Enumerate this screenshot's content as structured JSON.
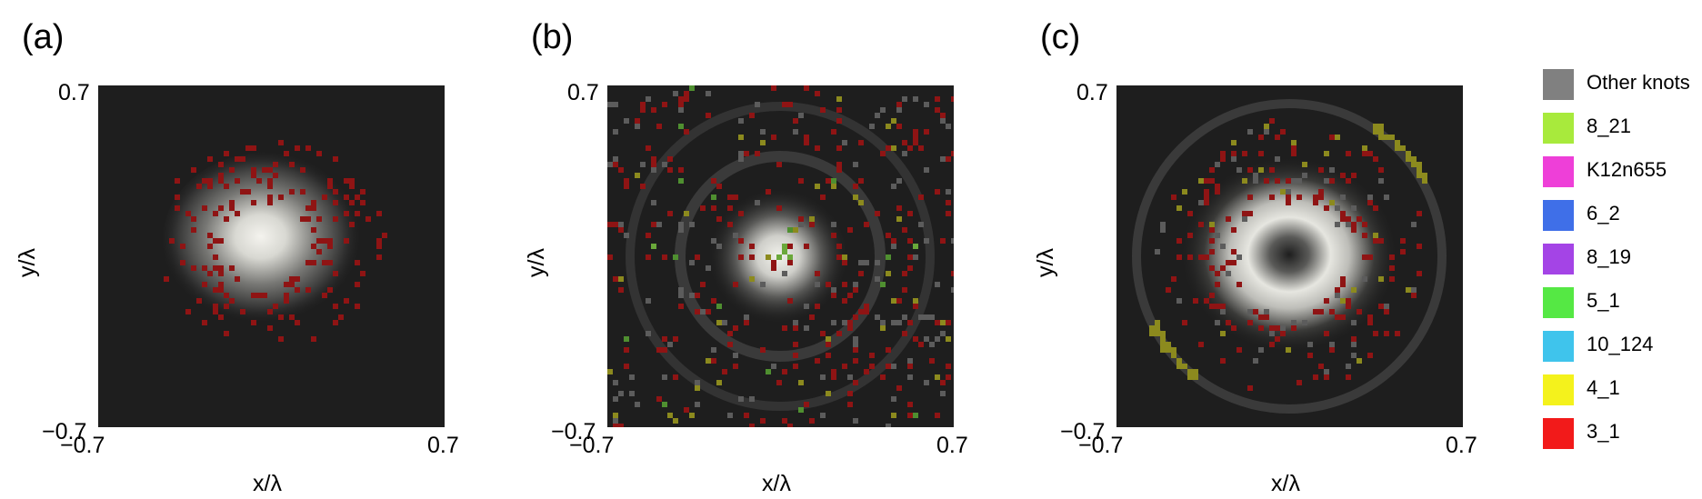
{
  "panels": [
    {
      "label": "(a)",
      "xlabel": "x/λ",
      "ylabel": "y/λ",
      "x_ticks": [
        "−0.7",
        "0.7"
      ],
      "y_ticks": [
        "0.7",
        "−0.7"
      ],
      "intensity_pattern": "gaussian spot",
      "knot_markers": [
        "3_1"
      ]
    },
    {
      "label": "(b)",
      "xlabel": "x/λ",
      "ylabel": "y/λ",
      "x_ticks": [
        "−0.7",
        "0.7"
      ],
      "y_ticks": [
        "0.7",
        "−0.7"
      ],
      "intensity_pattern": "central spot with concentric rings",
      "knot_markers": [
        "3_1",
        "Other knots",
        "4_1",
        "5_1",
        "8_19"
      ]
    },
    {
      "label": "(c)",
      "xlabel": "x/λ",
      "ylabel": "y/λ",
      "x_ticks": [
        "−0.7",
        "0.7"
      ],
      "y_ticks": [
        "0.7",
        "−0.7"
      ],
      "intensity_pattern": "ring with dark center and outer ring",
      "knot_markers": [
        "3_1",
        "Other knots",
        "4_1",
        "8_19"
      ]
    }
  ],
  "legend": [
    {
      "name": "Other knots",
      "color": "#808080"
    },
    {
      "name": "8_21",
      "color": "#a8ea3c"
    },
    {
      "name": "K12n655",
      "color": "#ee3fd8"
    },
    {
      "name": "6_2",
      "color": "#3f6fe8"
    },
    {
      "name": "8_19",
      "color": "#a444e6"
    },
    {
      "name": "5_1",
      "color": "#55e844"
    },
    {
      "name": "10_124",
      "color": "#3fc4ec"
    },
    {
      "name": "4_1",
      "color": "#f4f21c"
    },
    {
      "name": "3_1",
      "color": "#f21a1a"
    }
  ],
  "chart_data": [
    {
      "type": "heatmap",
      "title": "(a)",
      "xlabel": "x/λ",
      "ylabel": "y/λ",
      "xlim": [
        -0.7,
        0.7
      ],
      "ylim": [
        -0.7,
        0.7
      ]
    },
    {
      "type": "heatmap",
      "title": "(b)",
      "xlabel": "x/λ",
      "ylabel": "y/λ",
      "xlim": [
        -0.7,
        0.7
      ],
      "ylim": [
        -0.7,
        0.7
      ]
    },
    {
      "type": "heatmap",
      "title": "(c)",
      "xlabel": "x/λ",
      "ylabel": "y/λ",
      "xlim": [
        -0.7,
        0.7
      ],
      "ylim": [
        -0.7,
        0.7
      ]
    }
  ]
}
